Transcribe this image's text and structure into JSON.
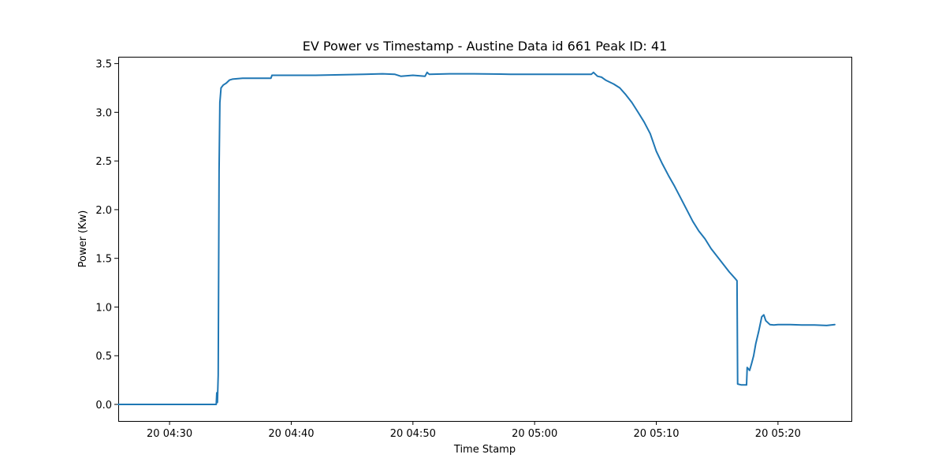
{
  "chart_data": {
    "type": "line",
    "title": "EV Power vs Timestamp - Austine Data id 661 Peak ID: 41",
    "xlabel": "Time Stamp",
    "ylabel": "Power (Kw)",
    "x_unit": "time (HH:MM, day 20)",
    "xlim": [
      "04:25:47",
      "05:26:02"
    ],
    "ylim": [
      -0.17,
      3.57
    ],
    "x_ticks": [
      {
        "value": "04:30",
        "label": "20 04:30"
      },
      {
        "value": "04:40",
        "label": "20 04:40"
      },
      {
        "value": "04:50",
        "label": "20 04:50"
      },
      {
        "value": "05:00",
        "label": "20 05:00"
      },
      {
        "value": "05:10",
        "label": "20 05:10"
      },
      {
        "value": "05:20",
        "label": "20 05:20"
      }
    ],
    "y_ticks": [
      {
        "value": 0.0,
        "label": "0.0"
      },
      {
        "value": 0.5,
        "label": "0.5"
      },
      {
        "value": 1.0,
        "label": "1.0"
      },
      {
        "value": 1.5,
        "label": "1.5"
      },
      {
        "value": 2.0,
        "label": "2.0"
      },
      {
        "value": 2.5,
        "label": "2.5"
      },
      {
        "value": 3.0,
        "label": "3.0"
      },
      {
        "value": 3.5,
        "label": "3.5"
      }
    ],
    "grid": false,
    "legend": null,
    "series": [
      {
        "color": "#1f77b4",
        "points": [
          [
            "04:25:47",
            0.0
          ],
          [
            "04:30:00",
            0.0
          ],
          [
            "04:33:40",
            0.0
          ],
          [
            "04:33:50",
            0.0
          ],
          [
            "04:33:53",
            0.12
          ],
          [
            "04:33:56",
            0.02
          ],
          [
            "04:34:00",
            0.3
          ],
          [
            "04:34:04",
            2.4
          ],
          [
            "04:34:08",
            3.1
          ],
          [
            "04:34:14",
            3.25
          ],
          [
            "04:34:25",
            3.28
          ],
          [
            "04:34:40",
            3.3
          ],
          [
            "04:34:55",
            3.33
          ],
          [
            "04:35:10",
            3.34
          ],
          [
            "04:36:00",
            3.35
          ],
          [
            "04:37:00",
            3.35
          ],
          [
            "04:38:20",
            3.35
          ],
          [
            "04:38:25",
            3.38
          ],
          [
            "04:40:00",
            3.38
          ],
          [
            "04:42:00",
            3.38
          ],
          [
            "04:44:00",
            3.385
          ],
          [
            "04:46:00",
            3.39
          ],
          [
            "04:47:30",
            3.395
          ],
          [
            "04:48:30",
            3.39
          ],
          [
            "04:49:00",
            3.37
          ],
          [
            "04:50:00",
            3.38
          ],
          [
            "04:51:00",
            3.37
          ],
          [
            "04:51:10",
            3.41
          ],
          [
            "04:51:20",
            3.39
          ],
          [
            "04:53:00",
            3.395
          ],
          [
            "04:55:00",
            3.395
          ],
          [
            "04:58:00",
            3.39
          ],
          [
            "05:02:00",
            3.39
          ],
          [
            "05:04:40",
            3.39
          ],
          [
            "05:04:50",
            3.41
          ],
          [
            "05:05:10",
            3.37
          ],
          [
            "05:05:30",
            3.36
          ],
          [
            "05:05:50",
            3.33
          ],
          [
            "05:06:30",
            3.29
          ],
          [
            "05:07:00",
            3.25
          ],
          [
            "05:07:30",
            3.18
          ],
          [
            "05:08:00",
            3.1
          ],
          [
            "05:08:30",
            3.0
          ],
          [
            "05:09:00",
            2.9
          ],
          [
            "05:09:30",
            2.78
          ],
          [
            "05:10:00",
            2.6
          ],
          [
            "05:10:30",
            2.47
          ],
          [
            "05:11:00",
            2.35
          ],
          [
            "05:11:30",
            2.24
          ],
          [
            "05:12:00",
            2.12
          ],
          [
            "05:12:30",
            2.0
          ],
          [
            "05:13:00",
            1.88
          ],
          [
            "05:13:30",
            1.78
          ],
          [
            "05:14:00",
            1.7
          ],
          [
            "05:14:30",
            1.6
          ],
          [
            "05:15:00",
            1.52
          ],
          [
            "05:15:30",
            1.44
          ],
          [
            "05:16:00",
            1.36
          ],
          [
            "05:16:30",
            1.29
          ],
          [
            "05:16:38",
            1.27
          ],
          [
            "05:16:41",
            0.21
          ],
          [
            "05:17:00",
            0.2
          ],
          [
            "05:17:25",
            0.2
          ],
          [
            "05:17:28",
            0.38
          ],
          [
            "05:17:40",
            0.35
          ],
          [
            "05:17:50",
            0.42
          ],
          [
            "05:18:00",
            0.5
          ],
          [
            "05:18:10",
            0.62
          ],
          [
            "05:18:25",
            0.75
          ],
          [
            "05:18:40",
            0.9
          ],
          [
            "05:18:50",
            0.92
          ],
          [
            "05:19:00",
            0.86
          ],
          [
            "05:19:20",
            0.82
          ],
          [
            "05:19:40",
            0.815
          ],
          [
            "05:20:00",
            0.82
          ],
          [
            "05:21:00",
            0.82
          ],
          [
            "05:22:00",
            0.815
          ],
          [
            "05:23:00",
            0.815
          ],
          [
            "05:24:00",
            0.81
          ],
          [
            "05:24:40",
            0.82
          ]
        ]
      }
    ]
  }
}
